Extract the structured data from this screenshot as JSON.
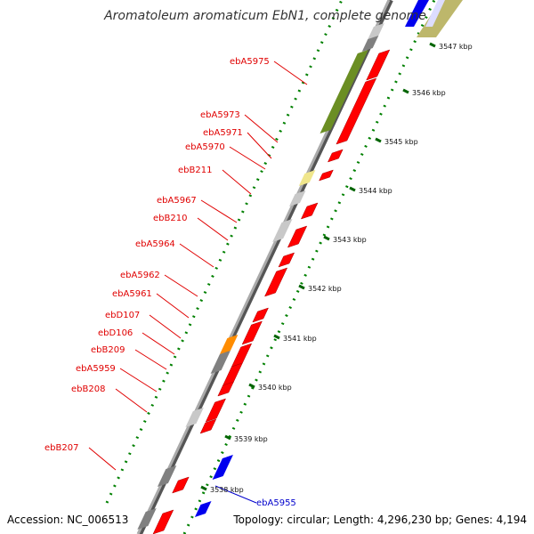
{
  "title": "Aromatoleum aromaticum EbN1, complete genome",
  "footer": {
    "accession": "Accession: NC_006513",
    "summary": "Topology: circular; Length: 4,296,230 bp; Genes: 4,194"
  },
  "colors": {
    "forward_cds": "#ff0000",
    "reverse_cds": "#0000ee",
    "gene_label": "#e00000",
    "gene_label_alt": "#0000cc",
    "olive": "#6b8e23",
    "khaki": "#bdb76b",
    "pale_yellow": "#f0e68c",
    "orange": "#ff8c00",
    "gray": "#808080",
    "light_gray": "#c8c8c8",
    "dots": "#008000"
  },
  "ticks": [
    "3547 kbp",
    "3546 kbp",
    "3545 kbp",
    "3544 kbp",
    "3543 kbp",
    "3542 kbp",
    "3541 kbp",
    "3540 kbp",
    "3539 kbp",
    "3538 kbp"
  ],
  "gene_labels": [
    "ebA5975",
    "ebA5973",
    "ebA5971",
    "ebA5970",
    "ebB211",
    "ebA5967",
    "ebB210",
    "ebA5964",
    "ebA5962",
    "ebA5961",
    "ebD107",
    "ebD106",
    "ebB209",
    "ebA5959",
    "ebB208",
    "ebB207"
  ],
  "right_labels": [
    "ebA5955"
  ]
}
